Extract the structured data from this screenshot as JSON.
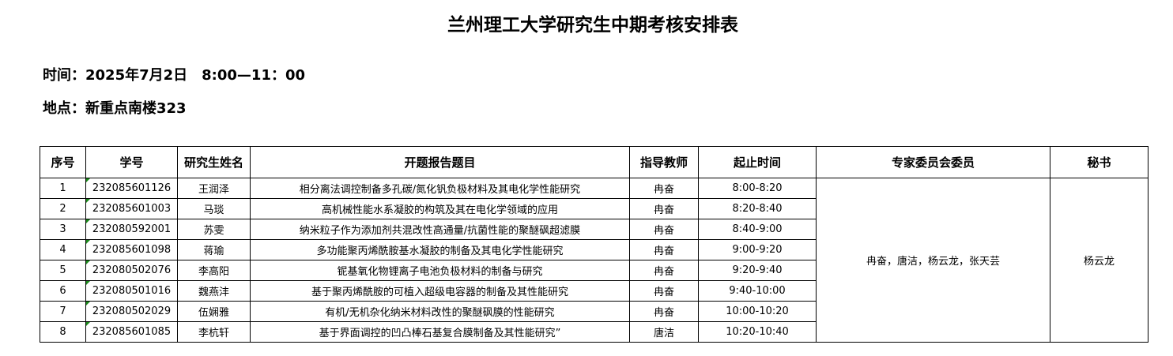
{
  "title": "兰州理工大学研究生中期考核安排表",
  "time": "时间：2025年7月2日　8:00—11：00",
  "location": "地点：新重点南楼323",
  "headers": [
    "序号",
    "学号",
    "研究生姓名",
    "开题报告题目",
    "指导教师",
    "起止时间",
    "专家委员会委员",
    "秘书"
  ],
  "rows": [
    [
      "1",
      "232085601126",
      "王润泽",
      "相分离法调控制备多孔碳/氮化钒负极材料及其电化学性能研究",
      "冉奋",
      "8:00-8:20"
    ],
    [
      "2",
      "232085601003",
      "马琰",
      "高机械性能水系凝胶的构筑及其在电化学领域的应用",
      "冉奋",
      "8:20-8:40"
    ],
    [
      "3",
      "232080592001",
      "苏雯",
      "纳米粒子作为添加剂共混改性高通量/抗菌性能的聚醚砜超滤膜",
      "冉奋",
      "8:40-9:00"
    ],
    [
      "4",
      "232085601098",
      "蒋瑜",
      "多功能聚丙烯酰胺基水凝胶的制备及其电化学性能研究",
      "冉奋",
      "9:00-9:20"
    ],
    [
      "5",
      "232080502076",
      "李高阳",
      "铌基氧化物锂离子电池负极材料的制备与研究",
      "冉奋",
      "9:20-9:40"
    ],
    [
      "6",
      "232080501016",
      "魏燕沣",
      "基于聚丙烯酰胺的可植入超级电容器的制备及其性能研究",
      "冉奋",
      "9:40-10:00"
    ],
    [
      "7",
      "232080502029",
      "伍娴雅",
      "有机/无机杂化纳米材料改性的聚醚砜膜的性能研究",
      "冉奋",
      "10:00-10:20"
    ],
    [
      "8",
      "232085601085",
      "李杭轩",
      "基于界面调控的凹凸棒石基复合膜制备及其性能研究”",
      "唐洁",
      "10:20-10:40"
    ]
  ],
  "committee": "冉奋，唐洁，杨云龙，张天芸",
  "secretary": "杨云龙"
}
